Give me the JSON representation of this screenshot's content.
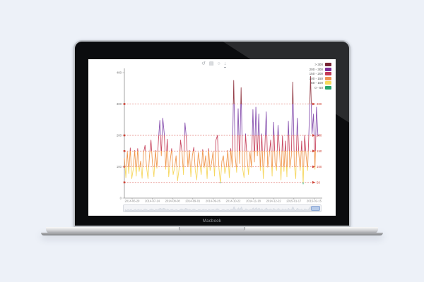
{
  "device": {
    "brand_label": "Macbook"
  },
  "toolbar": {
    "icons": [
      {
        "name": "restore-icon",
        "glyph": "↺"
      },
      {
        "name": "data-view-icon",
        "glyph": "▤"
      },
      {
        "name": "zoom-reset-icon",
        "glyph": "○"
      },
      {
        "name": "save-image-icon",
        "glyph": "↓"
      }
    ]
  },
  "chart_data": {
    "type": "line",
    "title": "",
    "xlabel": "",
    "ylabel": "",
    "ylim": [
      0,
      400
    ],
    "y_ticks": [
      0,
      100,
      200,
      300,
      400
    ],
    "x_tick_labels": [
      "2014-06-29",
      "2014-07-14",
      "2014-08-08",
      "2014-09-01",
      "2014-09-26",
      "2014-10-22",
      "2014-11-18",
      "2014-12-22",
      "2015-01-17",
      "2015-02-15"
    ],
    "threshold_lines": [
      50,
      100,
      150,
      200,
      300
    ],
    "threshold_color": "#cf4438",
    "grid": "threshold-dashed-only",
    "legend": {
      "position": "top-right",
      "bands": [
        {
          "label": "> 300",
          "color": "#772433"
        },
        {
          "label": "200 - 300",
          "color": "#7c2e96"
        },
        {
          "label": "150 - 200",
          "color": "#c43a57"
        },
        {
          "label": "100 - 150",
          "color": "#ef9454"
        },
        {
          "label": "50 - 100",
          "color": "#f7da5e"
        },
        {
          "label": "0 - 50",
          "color": "#29a46c"
        }
      ]
    },
    "line_band_bounds": [
      0,
      50,
      100,
      150,
      200,
      300,
      400
    ],
    "line_band_colors": [
      "#2fae71",
      "#f6d75f",
      "#f0984f",
      "#c94a63",
      "#8a54b0",
      "#96404b"
    ],
    "values": [
      128,
      65,
      148,
      78,
      160,
      62,
      92,
      152,
      70,
      158,
      85,
      118,
      63,
      145,
      168,
      98,
      62,
      135,
      185,
      112,
      68,
      152,
      95,
      180,
      248,
      135,
      255,
      205,
      92,
      188,
      68,
      118,
      158,
      75,
      96,
      135,
      55,
      92,
      185,
      148,
      75,
      240,
      190,
      100,
      152,
      68,
      135,
      162,
      88,
      58,
      145,
      112,
      75,
      155,
      96,
      135,
      62,
      158,
      88,
      112,
      148,
      70,
      185,
      200,
      95,
      48,
      118,
      135,
      78,
      102,
      152,
      65,
      158,
      98,
      375,
      135,
      82,
      285,
      110,
      352,
      95,
      65,
      205,
      128,
      75,
      148,
      98,
      282,
      115,
      290,
      135,
      268,
      88,
      205,
      62,
      152,
      275,
      98,
      135,
      185,
      70,
      242,
      112,
      88,
      232,
      148,
      58,
      198,
      85,
      182,
      68,
      245,
      95,
      135,
      370,
      105,
      62,
      255,
      145,
      88,
      182,
      45,
      200,
      135,
      88,
      225,
      388,
      205,
      268,
      92,
      290,
      198,
      202
    ]
  },
  "datazoom": {
    "window": "right-end"
  }
}
